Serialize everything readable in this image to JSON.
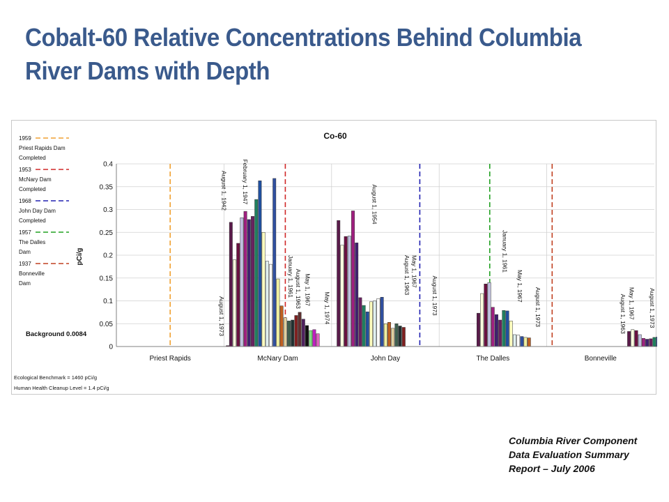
{
  "slide": {
    "title": "Cobalt-60 Relative Concentrations Behind Columbia River Dams with Depth",
    "credit_lines": [
      "Columbia River Component",
      "Data Evaluation Summary",
      "Report – July 2006"
    ]
  },
  "chart_data": {
    "type": "bar",
    "title": "Co-60",
    "ylabel": "pCi/g",
    "ylim": [
      0,
      0.4
    ],
    "yticks": [
      "0",
      "0.05",
      "0.1",
      "0.15",
      "0.2",
      "0.25",
      "0.3",
      "0.35",
      "0.4"
    ],
    "categories": [
      "Priest Rapids",
      "McNary Dam",
      "John Day",
      "The Dalles",
      "Bonneville"
    ],
    "background": {
      "label": "Background 0.0084",
      "value": 0.0084
    },
    "notes": [
      "Ecological Benchmark = 1460 pCi/g",
      "Human Health Cleanup Level = 1.4 pCi/g"
    ],
    "legend": [
      {
        "lines": [
          "1959",
          "Priest Rapids Dam",
          "Completed"
        ],
        "color": "#f0a030",
        "category": "Priest Rapids",
        "offset": 0
      },
      {
        "lines": [
          "1953",
          "McNary Dam",
          "Completed"
        ],
        "color": "#d02828",
        "category": "McNary Dam",
        "offset": 0.07
      },
      {
        "lines": [
          "1968",
          "John Day Dam",
          "Completed"
        ],
        "color": "#2020b0",
        "category": "John Day",
        "offset": 0.32
      },
      {
        "lines": [
          "1957",
          "The Dalles",
          "Dam"
        ],
        "color": "#20a020",
        "category": "The Dalles",
        "offset": -0.03
      },
      {
        "lines": [
          "1937",
          "Bonneville",
          "Dam"
        ],
        "color": "#c04020",
        "category": "Bonneville",
        "offset": -0.45
      }
    ],
    "groups": [
      {
        "category": "Priest Rapids",
        "start": 0.52,
        "values": [
          0.002,
          0.001
        ]
      },
      {
        "category": "McNary Dam",
        "start": -0.45,
        "values": [
          0.272,
          0.19,
          0.226,
          0.282,
          0.296,
          0.278,
          0.285,
          0.322,
          0.363,
          0.25,
          0.187,
          0.18,
          0.368,
          0.148,
          0.089,
          0.063,
          0.056,
          0.058,
          0.068,
          0.075,
          0.06,
          0.046,
          0.035,
          0.037,
          0.028
        ]
      },
      {
        "category": "John Day",
        "start": -0.45,
        "values": [
          0.276,
          0.222,
          0.241,
          0.242,
          0.297,
          0.227,
          0.107,
          0.09,
          0.076,
          0.098,
          0.1,
          0.105,
          0.108,
          0.05,
          0.053,
          0.04,
          0.05,
          0.045,
          0.042
        ]
      },
      {
        "category": "The Dalles",
        "start": -0.15,
        "values": [
          0.073,
          0.116,
          0.137,
          0.14,
          0.086,
          0.07,
          0.058,
          0.079,
          0.078,
          0.056,
          0.026,
          0.025,
          0.022,
          0.02,
          0.019
        ]
      },
      {
        "category": "Bonneville",
        "start": 0.25,
        "values": [
          0.033,
          0.037,
          0.035,
          0.026,
          0.018,
          0.016,
          0.017,
          0.02,
          0.021
        ]
      }
    ],
    "annotations": [
      {
        "text": "August 1, 1942",
        "category": "McNary Dam",
        "offset": -0.52,
        "top": 0.385
      },
      {
        "text": "February 1, 1947",
        "category": "McNary Dam",
        "offset": -0.32,
        "top": 0.41
      },
      {
        "text": "January 1, 1961",
        "category": "McNary Dam",
        "offset": 0.1,
        "top": 0.2
      },
      {
        "text": "August 1, 1963",
        "category": "McNary Dam",
        "offset": 0.17,
        "top": 0.17
      },
      {
        "text": "May 1, 1967",
        "category": "McNary Dam",
        "offset": 0.26,
        "top": 0.16
      },
      {
        "text": "May 1, 1974",
        "category": "McNary Dam",
        "offset": 0.44,
        "top": 0.12
      },
      {
        "text": "August 1, 1973",
        "category": "Priest Rapids",
        "offset": 0.46,
        "top": 0.11
      },
      {
        "text": "August 1, 1954",
        "category": "John Day",
        "offset": -0.12,
        "top": 0.355
      },
      {
        "text": "August 1, 1963",
        "category": "John Day",
        "offset": 0.18,
        "top": 0.2
      },
      {
        "text": "May 1, 1967",
        "category": "John Day",
        "offset": 0.25,
        "top": 0.2
      },
      {
        "text": "August 1, 1973",
        "category": "John Day",
        "offset": 0.44,
        "top": 0.155
      },
      {
        "text": "January 1, 1961",
        "category": "The Dalles",
        "offset": 0.09,
        "top": 0.255
      },
      {
        "text": "May 1, 1967",
        "category": "The Dalles",
        "offset": 0.23,
        "top": 0.168
      },
      {
        "text": "August 1, 1973",
        "category": "The Dalles",
        "offset": 0.4,
        "top": 0.13
      },
      {
        "text": "May 1, 1967",
        "category": "Bonneville",
        "offset": 0.27,
        "top": 0.13
      },
      {
        "text": "August 1, 1963",
        "category": "Bonneville",
        "offset": 0.19,
        "top": 0.115
      },
      {
        "text": "August 1, 1973",
        "category": "Bonneville",
        "offset": 0.46,
        "top": 0.128
      }
    ],
    "bar_colors": [
      "#5a1a4a",
      "#ffffe0",
      "#6a1040",
      "#c0c0e0",
      "#a02080",
      "#402070",
      "#6a2060",
      "#208060",
      "#2050a0",
      "#ffffc0",
      "#e0f0f0",
      "#ffffff",
      "#3050a0",
      "#f0f0a0",
      "#c06020",
      "#e0d0a0",
      "#406050",
      "#203030",
      "#802020",
      "#603030",
      "#502060",
      "#101010",
      "#80e080",
      "#c020c0",
      "#e060c0"
    ]
  }
}
